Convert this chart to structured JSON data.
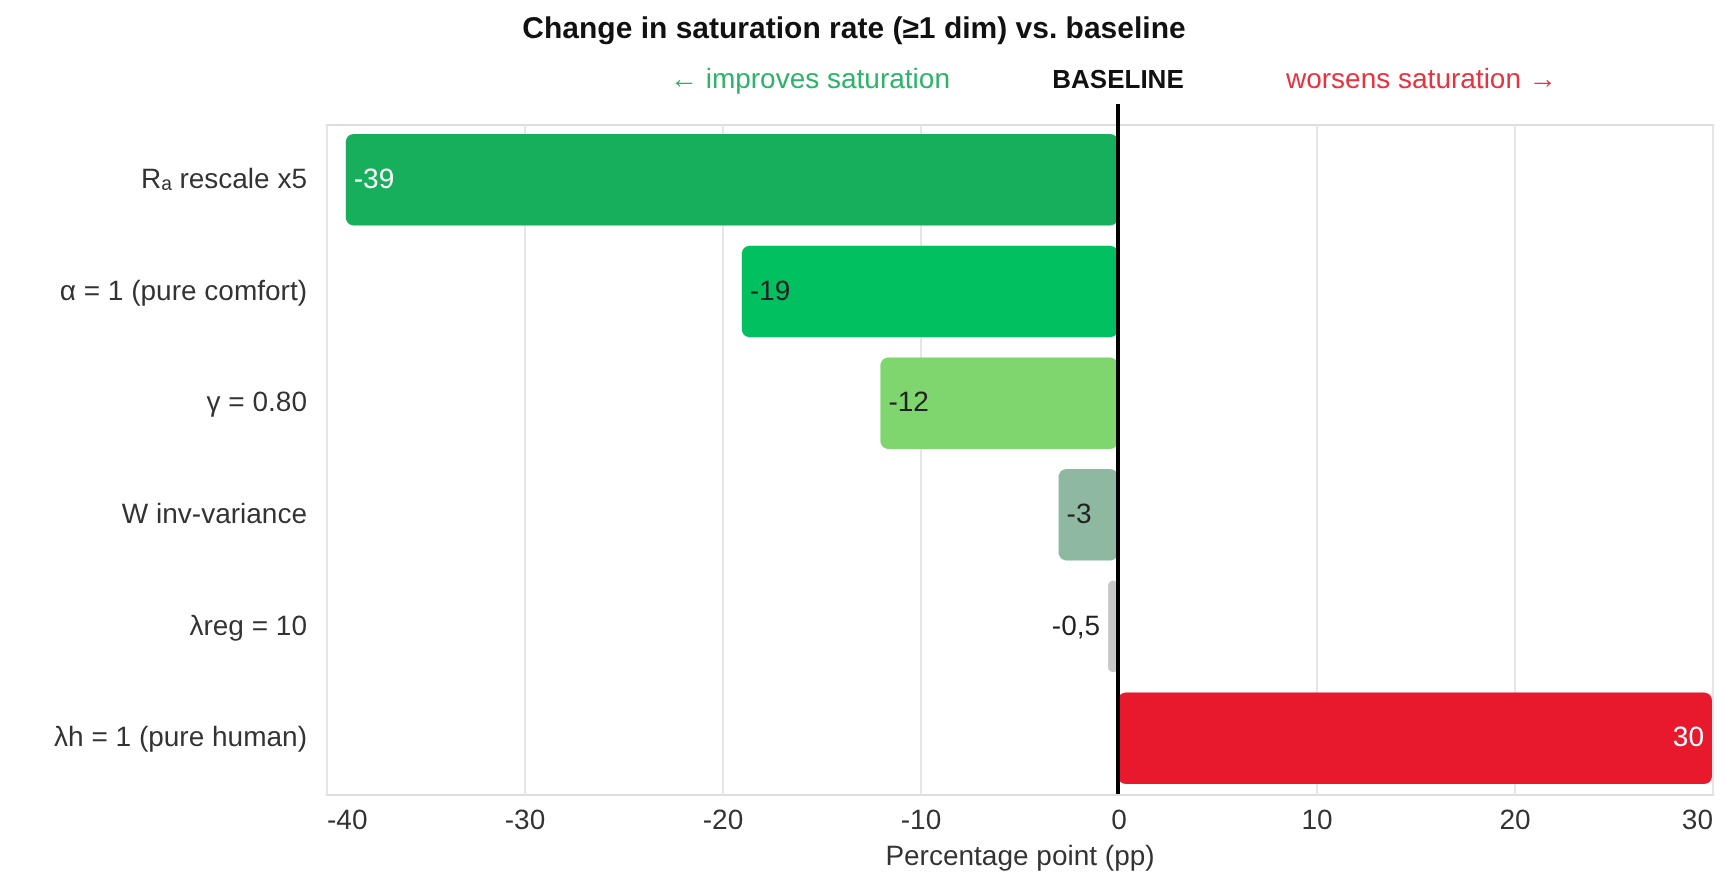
{
  "chart_data": {
    "type": "bar",
    "orientation": "horizontal",
    "title": "Change in saturation rate (≥1 dim) vs. baseline",
    "xlabel": "Percentage point (pp)",
    "categories": [
      "Rₐ rescale x5",
      "α = 1 (pure comfort)",
      "γ = 0.80",
      "W inv-variance",
      "λreg = 10",
      "λh = 1 (pure human)"
    ],
    "values": [
      -39,
      -19,
      -12,
      -3,
      -0.5,
      30
    ],
    "colors": [
      "#17ae5c",
      "#00c060",
      "#80d66e",
      "#8fb8a0",
      "#c8c8c8",
      "#e8192c"
    ],
    "value_labels": [
      "-39",
      "-19",
      "-12",
      "-3",
      "-0,5",
      "30"
    ],
    "xlim": [
      -40,
      30
    ],
    "xticks": [
      -40,
      -30,
      -20,
      -10,
      0,
      10,
      20,
      30
    ],
    "grid": "x",
    "ref_lines": [
      {
        "axis": "x",
        "value": 0,
        "label": "BASELINE",
        "color": "#000000"
      }
    ],
    "annotations": [
      "← improves saturation",
      "worsens saturation →"
    ]
  }
}
